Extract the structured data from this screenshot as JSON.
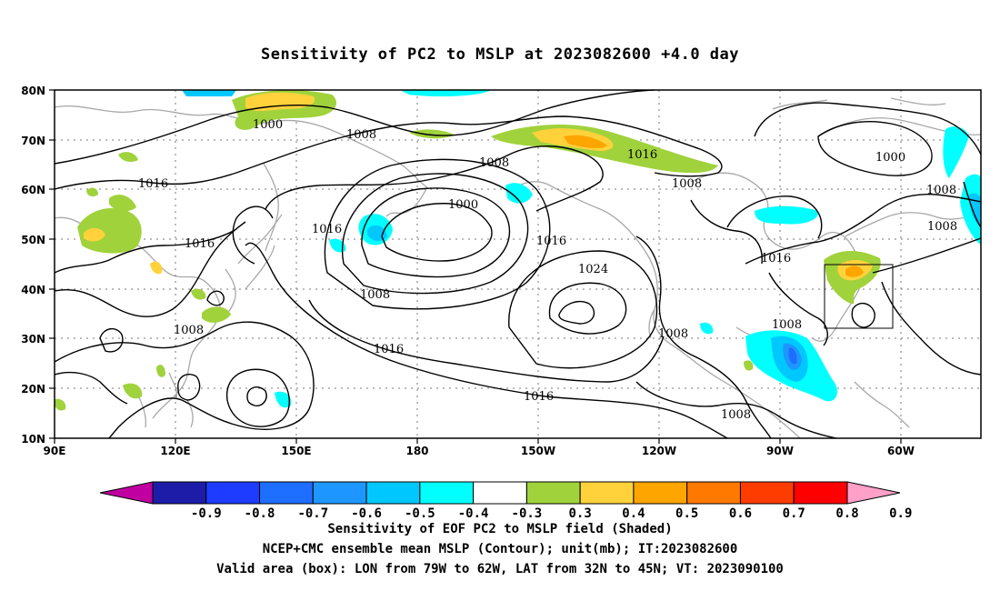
{
  "title": "Sensitivity of PC2 to MSLP at 2023082600 +4.0 day",
  "map": {
    "lat_ticks": [
      "80N",
      "70N",
      "60N",
      "50N",
      "40N",
      "30N",
      "20N",
      "10N"
    ],
    "lon_ticks": [
      "90E",
      "120E",
      "150E",
      "180",
      "150W",
      "120W",
      "90W",
      "60W"
    ],
    "extent": {
      "lon_west": "90E",
      "lon_east": "45W",
      "lat_south": "10N",
      "lat_north": "80N"
    },
    "grid": "dotted",
    "contour_interval_mb": 8,
    "contour_labels": [
      "1000",
      "1008",
      "1016",
      "1016",
      "1008",
      "1016",
      "1016",
      "1024",
      "1008",
      "1016",
      "1016",
      "1008",
      "1008",
      "1008",
      "1000",
      "1008",
      "1016",
      "1016",
      "1008",
      "1008",
      "1000",
      "1008"
    ],
    "valid_box": {
      "lon_west": "79W",
      "lon_east": "62W",
      "lat_south": "32N",
      "lat_north": "45N"
    }
  },
  "colorbar": {
    "labels": [
      "-0.9",
      "-0.8",
      "-0.7",
      "-0.6",
      "-0.5",
      "-0.4",
      "-0.3",
      "0.3",
      "0.4",
      "0.5",
      "0.6",
      "0.7",
      "0.8",
      "0.9"
    ],
    "colors": [
      "#c000a0",
      "#1c1ca8",
      "#1e3cff",
      "#1e6eff",
      "#1e96ff",
      "#00c8ff",
      "#00ffff",
      "#ffffff",
      "#a0d23c",
      "#ffd23c",
      "#ffa500",
      "#ff7800",
      "#ff3c00",
      "#ff0000",
      "#ffa0c8"
    ]
  },
  "captions": {
    "line1": "Sensitivity of EOF PC2 to MSLP field (Shaded)",
    "line2": "NCEP+CMC ensemble mean MSLP (Contour); unit(mb); IT:2023082600",
    "line3": "Valid area (box): LON from 79W to 62W, LAT from 32N to 45N; VT: 2023090100"
  }
}
